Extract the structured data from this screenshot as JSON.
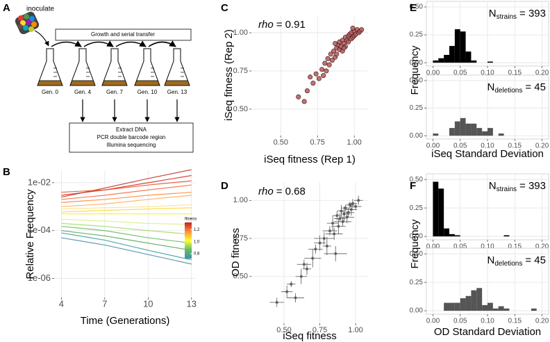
{
  "diagram": {
    "panel": "A",
    "inoculate": "inoculate",
    "transfer_box": "Growth and serial transfer",
    "generations": [
      "Gen. 0",
      "Gen. 4",
      "Gen. 7",
      "Gen. 10",
      "Gen. 13"
    ],
    "processing": [
      "Extract DNA",
      "PCR double barcode region",
      "Illumina sequencing"
    ]
  },
  "chart_data": [
    {
      "type": "line",
      "panel": "B",
      "xlabel": "Time (Generations)",
      "ylabel": "Relative Frequency",
      "x": [
        4,
        7,
        10,
        13
      ],
      "xlim": [
        3.5,
        13.3
      ],
      "xticks": [
        4,
        7,
        10,
        13
      ],
      "yscale": "log",
      "ylim": [
        1.6e-07,
        0.033
      ],
      "yticks": [
        {
          "value": 0.01,
          "label": "1e-02"
        },
        {
          "value": 0.0001,
          "label": "1e-04"
        },
        {
          "value": 1e-06,
          "label": "1e-06"
        }
      ],
      "grid": true,
      "colorbar": {
        "label": "fitness",
        "lim": [
          0.72,
          1.32
        ],
        "ticks": [
          {
            "value": 1.2,
            "label": "1.2"
          },
          {
            "value": 1,
            "label": "1.0"
          },
          {
            "value": 0.8,
            "label": "0.8"
          }
        ],
        "colors": [
          "#3d8fb0",
          "#66bd63",
          "#ffff33",
          "#fd8d3c",
          "#c62020"
        ]
      },
      "series": [
        {
          "color": "#c0392b",
          "values": [
            0.0025,
            0.006,
            0.015,
            0.035
          ]
        },
        {
          "color": "#d73027",
          "values": [
            0.003,
            0.005,
            0.01,
            0.02
          ]
        },
        {
          "color": "#e4572e",
          "values": [
            0.004,
            0.005,
            0.008,
            0.012
          ]
        },
        {
          "color": "#f46d43",
          "values": [
            0.002,
            0.003,
            0.005,
            0.008
          ]
        },
        {
          "color": "#f88d3a",
          "values": [
            0.0015,
            0.002,
            0.003,
            0.004
          ]
        },
        {
          "color": "#fdae61",
          "values": [
            0.001,
            0.0013,
            0.002,
            0.003
          ]
        },
        {
          "color": "#fee08b",
          "values": [
            0.0008,
            0.0009,
            0.001,
            0.0012
          ]
        },
        {
          "color": "#fdd835",
          "values": [
            0.0006,
            0.0007,
            0.0008,
            0.0009
          ]
        },
        {
          "color": "#f2f23a",
          "values": [
            0.0005,
            0.0005,
            0.0005,
            0.0005
          ]
        },
        {
          "color": "#d9ef8b",
          "values": [
            0.0003,
            0.00025,
            0.0002,
            0.00018
          ]
        },
        {
          "color": "#a6d96a",
          "values": [
            0.0002,
            0.00015,
            0.0001,
            7e-05
          ]
        },
        {
          "color": "#66bd63",
          "values": [
            0.00015,
            0.0001,
            5e-05,
            3e-05
          ]
        },
        {
          "color": "#5aae61",
          "values": [
            0.0001,
            6e-05,
            3e-05,
            1.5e-05
          ]
        },
        {
          "color": "#3f9f9f",
          "values": [
            8e-05,
            4e-05,
            1.5e-05,
            6e-06
          ]
        },
        {
          "color": "#4a90a4",
          "values": [
            5e-05,
            2.5e-05,
            1e-05,
            4e-06
          ]
        }
      ]
    },
    {
      "type": "scatter",
      "panel": "C",
      "xlabel": "iSeq fitness (Rep 1)",
      "ylabel": "iSeq fitness (Rep 2)",
      "annotation": {
        "symbol": "rho",
        "text": "= 0.91"
      },
      "color": "#b35a5a",
      "grid": true,
      "xlim": [
        0.3,
        1.094
      ],
      "ylim": [
        0.327,
        1.114
      ],
      "xticks": [
        {
          "value": 0.5,
          "label": "0.50"
        },
        {
          "value": 0.75,
          "label": "0.75"
        },
        {
          "value": 1,
          "label": "1.00"
        }
      ],
      "yticks": [
        {
          "value": 0.5,
          "label": "0.50"
        },
        {
          "value": 0.75,
          "label": "0.75"
        },
        {
          "value": 1,
          "label": "1.00"
        }
      ],
      "x": [
        0.62,
        0.68,
        0.7,
        0.72,
        0.74,
        0.76,
        0.78,
        0.8,
        0.81,
        0.82,
        0.83,
        0.84,
        0.85,
        0.86,
        0.87,
        0.88,
        0.88,
        0.89,
        0.9,
        0.9,
        0.91,
        0.92,
        0.92,
        0.93,
        0.94,
        0.94,
        0.95,
        0.96,
        0.96,
        0.97,
        0.98,
        0.98,
        0.99,
        1.0,
        1.0,
        1.01,
        1.02,
        1.03,
        1.04,
        1.05,
        0.79,
        0.66,
        0.87,
        0.93,
        0.99
      ],
      "y": [
        0.58,
        0.62,
        0.71,
        0.67,
        0.73,
        0.7,
        0.76,
        0.8,
        0.75,
        0.83,
        0.79,
        0.86,
        0.82,
        0.88,
        0.84,
        0.9,
        0.86,
        0.92,
        0.89,
        0.94,
        0.91,
        0.95,
        0.88,
        0.93,
        0.97,
        0.91,
        0.95,
        0.98,
        0.94,
        0.99,
        0.96,
        1.0,
        0.97,
        1.01,
        0.98,
        0.99,
        1.02,
        1.0,
        1.01,
        1.02,
        0.72,
        0.55,
        0.93,
        0.9,
        1.03
      ]
    },
    {
      "type": "scatter",
      "panel": "D",
      "xlabel": "iSeq fitness",
      "ylabel": "OD fitness",
      "annotation": {
        "symbol": "rho",
        "text": "= 0.68"
      },
      "color": "#555555",
      "grid": true,
      "xlim": [
        0.272,
        1.087
      ],
      "ylim": [
        0.193,
        1.12
      ],
      "xticks": [
        {
          "value": 0.5,
          "label": "0.50"
        },
        {
          "value": 0.75,
          "label": "0.75"
        },
        {
          "value": 1,
          "label": "1.00"
        }
      ],
      "yticks": [
        {
          "value": 0.5,
          "label": "0.50"
        },
        {
          "value": 0.75,
          "label": "0.75"
        },
        {
          "value": 1,
          "label": "1.00"
        }
      ],
      "x": [
        0.45,
        0.52,
        0.55,
        0.58,
        0.62,
        0.64,
        0.66,
        0.7,
        0.72,
        0.75,
        0.78,
        0.8,
        0.82,
        0.84,
        0.85,
        0.87,
        0.88,
        0.89,
        0.9,
        0.91,
        0.92,
        0.93,
        0.94,
        0.95,
        0.96,
        0.97,
        0.98,
        1.0,
        1.02,
        0.86
      ],
      "y": [
        0.33,
        0.4,
        0.45,
        0.36,
        0.5,
        0.58,
        0.55,
        0.62,
        0.68,
        0.72,
        0.75,
        0.7,
        0.8,
        0.85,
        0.78,
        0.9,
        0.83,
        0.88,
        0.93,
        0.86,
        0.91,
        0.95,
        0.89,
        0.92,
        0.97,
        0.94,
        0.98,
        0.96,
        1.0,
        0.65
      ],
      "xerr": [
        0.05,
        0.04,
        0.03,
        0.06,
        0.04,
        0.05,
        0.03,
        0.06,
        0.05,
        0.04,
        0.07,
        0.03,
        0.05,
        0.04,
        0.06,
        0.03,
        0.05,
        0.04,
        0.03,
        0.06,
        0.04,
        0.03,
        0.05,
        0.04,
        0.03,
        0.04,
        0.03,
        0.04,
        0.03,
        0.08
      ],
      "yerr": [
        0.03,
        0.04,
        0.02,
        0.03,
        0.05,
        0.03,
        0.04,
        0.06,
        0.03,
        0.05,
        0.04,
        0.06,
        0.03,
        0.05,
        0.04,
        0.03,
        0.05,
        0.02,
        0.04,
        0.03,
        0.05,
        0.02,
        0.04,
        0.03,
        0.02,
        0.04,
        0.03,
        0.02,
        0.03,
        0.05
      ]
    },
    {
      "type": "histogram",
      "panel": "E",
      "ylabel": "Frequency",
      "color": "#000000",
      "grid": true,
      "annotation": {
        "symbol": "N",
        "subscript": "strains",
        "text": "= 393"
      },
      "xlim": [
        -0.012,
        0.212
      ],
      "ylim": [
        -0.03,
        0.55
      ],
      "xticks": [
        {
          "value": 0,
          "label": "0.00"
        },
        {
          "value": 0.05,
          "label": "0.05"
        },
        {
          "value": 0.1,
          "label": "0.10"
        },
        {
          "value": 0.15,
          "label": "0.15"
        },
        {
          "value": 0.2,
          "label": "0.20"
        }
      ],
      "yticks": [
        {
          "value": 0,
          "label": "0.00"
        },
        {
          "value": 0.25,
          "label": "0.25"
        },
        {
          "value": 0.5,
          "label": "0.50"
        }
      ],
      "bins": [
        0,
        0.01,
        0.02,
        0.03,
        0.04,
        0.05,
        0.06,
        0.07,
        0.08,
        0.09,
        0.1,
        0.11,
        0.12
      ],
      "values": [
        0.02,
        0.04,
        0.07,
        0.15,
        0.3,
        0.28,
        0.1,
        0.02,
        0,
        0,
        0.01,
        0
      ]
    },
    {
      "type": "histogram",
      "xlabel": "iSeq Standard Deviation",
      "color": "#555555",
      "grid": true,
      "annotation": {
        "symbol": "N",
        "subscript": "deletions",
        "text": "= 45"
      },
      "xlim": [
        -0.012,
        0.212
      ],
      "ylim": [
        -0.03,
        0.55
      ],
      "xticks": [
        {
          "value": 0,
          "label": "0.00"
        },
        {
          "value": 0.05,
          "label": "0.05"
        },
        {
          "value": 0.1,
          "label": "0.10"
        },
        {
          "value": 0.15,
          "label": "0.15"
        },
        {
          "value": 0.2,
          "label": "0.20"
        }
      ],
      "yticks": [
        {
          "value": 0,
          "label": "0.00"
        },
        {
          "value": 0.25,
          "label": "0.25"
        },
        {
          "value": 0.5,
          "label": "0.50"
        }
      ],
      "bins": [
        0,
        0.01,
        0.02,
        0.03,
        0.04,
        0.05,
        0.06,
        0.07,
        0.08,
        0.09,
        0.1,
        0.11,
        0.12,
        0.13,
        0.14
      ],
      "values": [
        0.02,
        0,
        0,
        0.07,
        0.13,
        0.16,
        0.11,
        0.11,
        0.07,
        0.04,
        0.07,
        0,
        0.02,
        0
      ]
    },
    {
      "type": "histogram",
      "panel": "F",
      "ylabel": "Frequency",
      "color": "#000000",
      "grid": true,
      "annotation": {
        "symbol": "N",
        "subscript": "strains",
        "text": "= 393"
      },
      "xlim": [
        -0.012,
        0.212
      ],
      "ylim": [
        -0.03,
        0.55
      ],
      "xticks": [
        {
          "value": 0,
          "label": "0.00"
        },
        {
          "value": 0.05,
          "label": "0.05"
        },
        {
          "value": 0.1,
          "label": "0.10"
        },
        {
          "value": 0.15,
          "label": "0.15"
        },
        {
          "value": 0.2,
          "label": "0.20"
        }
      ],
      "yticks": [
        {
          "value": 0,
          "label": "0.00"
        },
        {
          "value": 0.25,
          "label": "0.25"
        },
        {
          "value": 0.5,
          "label": "0.50"
        }
      ],
      "bins": [
        0,
        0.01,
        0.02,
        0.03,
        0.04,
        0.05,
        0.06,
        0.07,
        0.08,
        0.09,
        0.1,
        0.11,
        0.12,
        0.13,
        0.14,
        0.15
      ],
      "values": [
        0.48,
        0.42,
        0.07,
        0.02,
        0.01,
        0,
        0,
        0,
        0,
        0,
        0,
        0,
        0,
        0.01,
        0
      ]
    },
    {
      "type": "histogram",
      "xlabel": "OD Standard Deviation",
      "color": "#555555",
      "grid": true,
      "annotation": {
        "symbol": "N",
        "subscript": "deletions",
        "text": "= 45"
      },
      "xlim": [
        -0.012,
        0.212
      ],
      "ylim": [
        -0.03,
        0.55
      ],
      "xticks": [
        {
          "value": 0,
          "label": "0.00"
        },
        {
          "value": 0.05,
          "label": "0.05"
        },
        {
          "value": 0.1,
          "label": "0.10"
        },
        {
          "value": 0.15,
          "label": "0.15"
        },
        {
          "value": 0.2,
          "label": "0.20"
        }
      ],
      "yticks": [
        {
          "value": 0,
          "label": "0.00"
        },
        {
          "value": 0.25,
          "label": "0.25"
        },
        {
          "value": 0.5,
          "label": "0.50"
        }
      ],
      "bins": [
        0,
        0.01,
        0.02,
        0.03,
        0.04,
        0.05,
        0.06,
        0.07,
        0.08,
        0.09,
        0.1,
        0.11,
        0.12,
        0.13,
        0.14,
        0.15,
        0.16,
        0.17,
        0.18,
        0.19,
        0.2
      ],
      "values": [
        0,
        0,
        0.07,
        0.07,
        0.07,
        0.11,
        0.13,
        0.18,
        0.2,
        0.05,
        0.07,
        0.02,
        0.04,
        0.02,
        0,
        0,
        0,
        0,
        0.02,
        0
      ]
    }
  ]
}
